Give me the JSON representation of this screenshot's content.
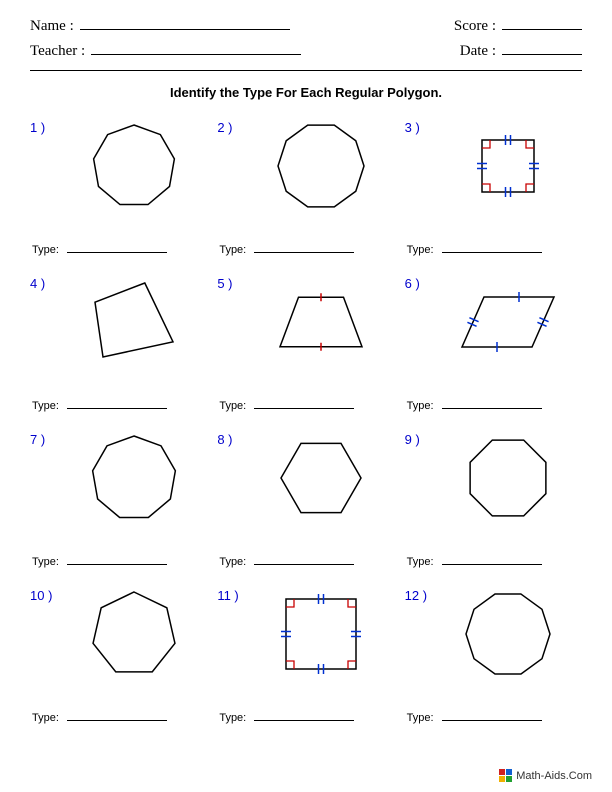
{
  "header": {
    "name_label": "Name :",
    "teacher_label": "Teacher :",
    "score_label": "Score :",
    "date_label": "Date :",
    "name_line_width": 210,
    "teacher_line_width": 210,
    "score_line_width": 80,
    "date_line_width": 80
  },
  "title": "Identify the Type For Each Regular Polygon.",
  "answer_label": "Type:",
  "number_color": "#0000cc",
  "stroke_color": "#000000",
  "tick_red": "#c80000",
  "tick_blue": "#0030d0",
  "problems": [
    {
      "n": "1 )",
      "shape": "nonagon",
      "size": 86,
      "marks": "none"
    },
    {
      "n": "2 )",
      "shape": "decagon",
      "size": 90,
      "marks": "none"
    },
    {
      "n": "3 )",
      "shape": "square",
      "size": 56,
      "marks": "square-marks"
    },
    {
      "n": "4 )",
      "shape": "quad-irreg",
      "size": 90,
      "marks": "none"
    },
    {
      "n": "5 )",
      "shape": "trapezoid",
      "size": 90,
      "marks": "trap-marks"
    },
    {
      "n": "6 )",
      "shape": "rhombus",
      "size": 100,
      "marks": "rhom-marks"
    },
    {
      "n": "7 )",
      "shape": "nonagon",
      "size": 88,
      "marks": "none"
    },
    {
      "n": "8 )",
      "shape": "hexagon",
      "size": 84,
      "marks": "none"
    },
    {
      "n": "9 )",
      "shape": "octagon",
      "size": 86,
      "marks": "none"
    },
    {
      "n": "10 )",
      "shape": "heptagon",
      "size": 88,
      "marks": "none"
    },
    {
      "n": "11 )",
      "shape": "square",
      "size": 74,
      "marks": "square-marks"
    },
    {
      "n": "12 )",
      "shape": "decagon",
      "size": 88,
      "marks": "none"
    }
  ],
  "footer": {
    "text": "Math-Aids.Com",
    "logo_colors": [
      "#d02020",
      "#1060d0",
      "#f0b000",
      "#20a030"
    ]
  }
}
